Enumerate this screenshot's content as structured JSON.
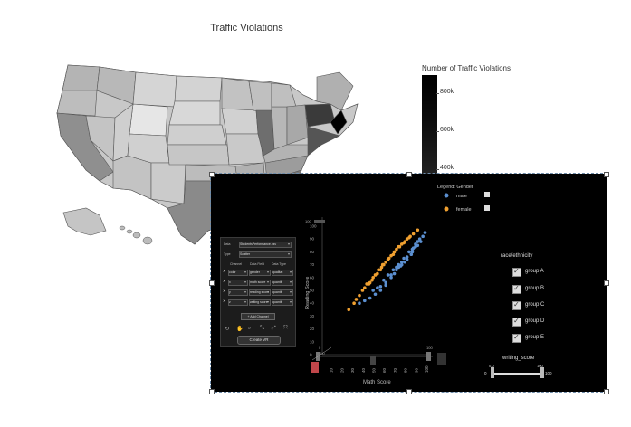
{
  "map": {
    "title": "Traffic Violations",
    "legend_title": "Number of Traffic Violations",
    "legend_ticks": [
      "800k",
      "600k",
      "400k"
    ],
    "colors": {
      "light": "#dcdcdc",
      "mid": "#b5b5b5",
      "dark": "#6d6d6d",
      "darkest": "#2a2a2a",
      "highlight": "#000000"
    }
  },
  "overlay": {
    "panel": {
      "data_label": "Data",
      "data_value": "StudentsPerformance.csv",
      "type_label": "Type",
      "type_value": "Scatter",
      "headers": [
        "Channel",
        "Data Field",
        "Data Type"
      ],
      "rows": [
        {
          "x": "✕",
          "channel": "color",
          "field": "gender",
          "type": "qualitat"
        },
        {
          "x": "✕",
          "channel": "x",
          "field": "math score",
          "type": "quantit"
        },
        {
          "x": "✕",
          "channel": "y",
          "field": "reading score",
          "type": "quantit"
        },
        {
          "x": "✕",
          "channel": "z",
          "field": "writing score",
          "type": "quantit"
        }
      ],
      "add_channel": "+ Add Channel",
      "tools": [
        "⟲",
        "✋",
        "⌕",
        "⤡",
        "⤢",
        "⤧"
      ],
      "create_button": "Create VR"
    },
    "chart_data": {
      "type": "scatter",
      "title": "",
      "xlabel": "Math Score",
      "ylabel": "Reading Score",
      "zlabel": "writing_score",
      "xlim": [
        0,
        100
      ],
      "ylim": [
        0,
        100
      ],
      "x_ticks": [
        "10",
        "20",
        "30",
        "40",
        "50",
        "60",
        "70",
        "80",
        "90",
        "100"
      ],
      "y_ticks": [
        "100",
        "90",
        "80",
        "70",
        "60",
        "50",
        "40",
        "30",
        "20",
        "10",
        "0"
      ],
      "legend_title": "Legend: Gender",
      "series": [
        {
          "name": "male",
          "color": "#5b8fd0",
          "points": [
            [
              35,
              40
            ],
            [
              40,
              42
            ],
            [
              45,
              44
            ],
            [
              48,
              50
            ],
            [
              50,
              47
            ],
            [
              52,
              52
            ],
            [
              55,
              53
            ],
            [
              58,
              58
            ],
            [
              60,
              56
            ],
            [
              62,
              62
            ],
            [
              65,
              62
            ],
            [
              67,
              66
            ],
            [
              70,
              68
            ],
            [
              72,
              70
            ],
            [
              75,
              72
            ],
            [
              77,
              75
            ],
            [
              80,
              76
            ],
            [
              82,
              80
            ],
            [
              85,
              82
            ],
            [
              88,
              86
            ],
            [
              90,
              88
            ],
            [
              92,
              90
            ],
            [
              95,
              92
            ],
            [
              97,
              95
            ],
            [
              65,
              60
            ],
            [
              70,
              66
            ],
            [
              75,
              70
            ],
            [
              80,
              74
            ],
            [
              85,
              80
            ],
            [
              90,
              85
            ],
            [
              60,
              54
            ],
            [
              55,
              50
            ],
            [
              72,
              68
            ],
            [
              78,
              72
            ],
            [
              84,
              78
            ],
            [
              88,
              84
            ],
            [
              93,
              88
            ],
            [
              68,
              63
            ],
            [
              74,
              69
            ],
            [
              86,
              83
            ]
          ]
        },
        {
          "name": "female",
          "color": "#f0a030",
          "points": [
            [
              25,
              35
            ],
            [
              30,
              40
            ],
            [
              35,
              46
            ],
            [
              38,
              50
            ],
            [
              42,
              55
            ],
            [
              45,
              56
            ],
            [
              48,
              60
            ],
            [
              50,
              62
            ],
            [
              52,
              63
            ],
            [
              55,
              66
            ],
            [
              57,
              70
            ],
            [
              60,
              72
            ],
            [
              62,
              74
            ],
            [
              65,
              77
            ],
            [
              67,
              78
            ],
            [
              70,
              82
            ],
            [
              72,
              84
            ],
            [
              75,
              86
            ],
            [
              78,
              88
            ],
            [
              80,
              90
            ],
            [
              83,
              92
            ],
            [
              86,
              94
            ],
            [
              90,
              97
            ],
            [
              40,
              52
            ],
            [
              47,
              58
            ],
            [
              53,
              66
            ],
            [
              58,
              70
            ],
            [
              63,
              75
            ],
            [
              68,
              80
            ],
            [
              73,
              84
            ],
            [
              77,
              87
            ],
            [
              82,
              91
            ],
            [
              32,
              43
            ],
            [
              44,
              55
            ],
            [
              56,
              68
            ]
          ]
        }
      ]
    },
    "slider_x": {
      "min": "0",
      "max": "100"
    },
    "slider_y": {
      "label": "0.0"
    },
    "wrap_by": {
      "title": "race/ethnicity",
      "options": [
        "group A",
        "group B",
        "group C",
        "group D",
        "group E"
      ]
    },
    "writing_slider": {
      "label": "writing_score",
      "min": "0",
      "max": "100",
      "left_val": "0.0",
      "right_val": "100"
    }
  }
}
